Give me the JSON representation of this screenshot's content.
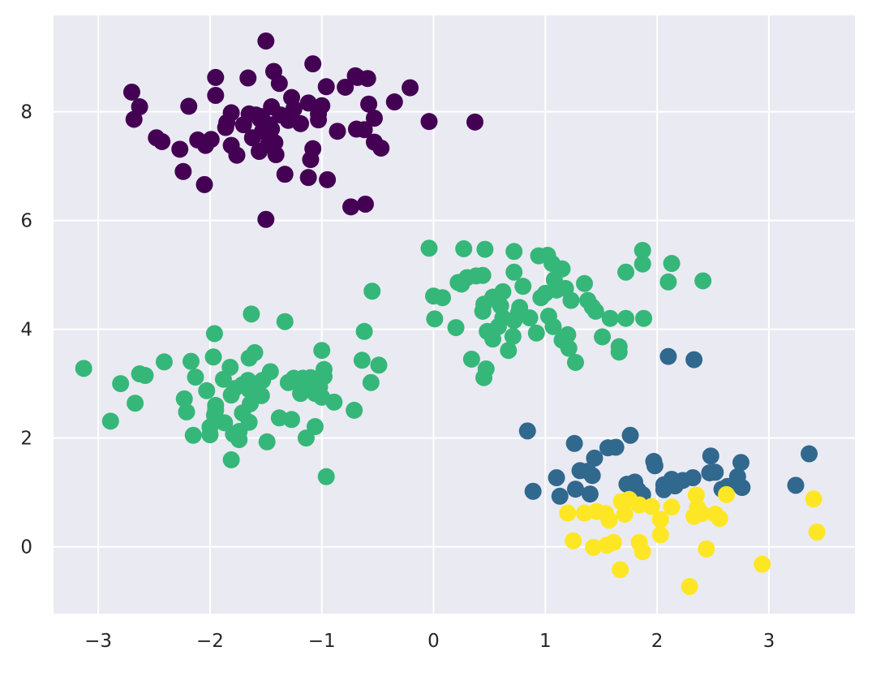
{
  "chart_data": {
    "type": "scatter",
    "title": "",
    "xlabel": "",
    "ylabel": "",
    "xlim": [
      -3.4,
      3.77
    ],
    "ylim": [
      -1.23,
      9.77
    ],
    "grid": true,
    "legend": "none",
    "xticks": [
      {
        "value": -3,
        "label": "−3"
      },
      {
        "value": -2,
        "label": "−2"
      },
      {
        "value": -1,
        "label": "−1"
      },
      {
        "value": 0,
        "label": "0"
      },
      {
        "value": 1,
        "label": "1"
      },
      {
        "value": 2,
        "label": "2"
      },
      {
        "value": 3,
        "label": "3"
      }
    ],
    "yticks": [
      {
        "value": 0,
        "label": "0"
      },
      {
        "value": 2,
        "label": "2"
      },
      {
        "value": 4,
        "label": "4"
      },
      {
        "value": 6,
        "label": "6"
      },
      {
        "value": 8,
        "label": "8"
      }
    ],
    "style": {
      "plot_background": "#eaeaf2",
      "grid_color": "#ffffff",
      "tick_label_color": "#262626"
    },
    "series": [
      {
        "color": "#440154",
        "points": [
          [
            -1.5,
            9.3
          ],
          [
            -1.08,
            8.88
          ],
          [
            -0.7,
            8.66
          ],
          [
            -0.68,
            8.63
          ],
          [
            -0.59,
            8.61
          ],
          [
            -1.95,
            8.63
          ],
          [
            -1.66,
            8.62
          ],
          [
            -1.43,
            8.74
          ],
          [
            -0.96,
            8.46
          ],
          [
            -0.79,
            8.45
          ],
          [
            -0.21,
            8.44
          ],
          [
            -1.38,
            8.52
          ],
          [
            -2.7,
            8.36
          ],
          [
            -1.95,
            8.3
          ],
          [
            -1.27,
            8.26
          ],
          [
            -1.12,
            8.16
          ],
          [
            -2.63,
            8.09
          ],
          [
            -2.19,
            8.1
          ],
          [
            -1.45,
            8.09
          ],
          [
            -1.25,
            8.05
          ],
          [
            -1.0,
            8.11
          ],
          [
            -0.58,
            8.14
          ],
          [
            -0.35,
            8.18
          ],
          [
            -1.81,
            7.98
          ],
          [
            -1.65,
            7.96
          ],
          [
            -1.59,
            7.94
          ],
          [
            -1.54,
            7.91
          ],
          [
            -1.37,
            7.94
          ],
          [
            -1.03,
            7.96
          ],
          [
            -0.53,
            7.88
          ],
          [
            -2.68,
            7.86
          ],
          [
            -1.85,
            7.8
          ],
          [
            -1.55,
            7.86
          ],
          [
            -1.47,
            7.76
          ],
          [
            -1.3,
            7.84
          ],
          [
            -1.19,
            7.78
          ],
          [
            -1.03,
            7.85
          ],
          [
            -1.86,
            7.71
          ],
          [
            -1.7,
            7.76
          ],
          [
            -1.53,
            7.64
          ],
          [
            -1.45,
            7.68
          ],
          [
            -0.86,
            7.64
          ],
          [
            -0.69,
            7.68
          ],
          [
            -0.62,
            7.67
          ],
          [
            -0.04,
            7.82
          ],
          [
            0.37,
            7.81
          ],
          [
            -2.48,
            7.52
          ],
          [
            -2.43,
            7.45
          ],
          [
            -2.11,
            7.48
          ],
          [
            -1.99,
            7.49
          ],
          [
            -2.04,
            7.38
          ],
          [
            -1.81,
            7.38
          ],
          [
            -1.62,
            7.52
          ],
          [
            -1.48,
            7.39
          ],
          [
            -1.42,
            7.43
          ],
          [
            -0.53,
            7.44
          ],
          [
            -0.47,
            7.33
          ],
          [
            -2.27,
            7.31
          ],
          [
            -1.56,
            7.27
          ],
          [
            -1.41,
            7.21
          ],
          [
            -1.08,
            7.32
          ],
          [
            -1.76,
            7.2
          ],
          [
            -1.1,
            7.12
          ],
          [
            -2.24,
            6.9
          ],
          [
            -1.33,
            6.85
          ],
          [
            -1.12,
            6.79
          ],
          [
            -0.95,
            6.75
          ],
          [
            -2.05,
            6.66
          ],
          [
            -0.74,
            6.25
          ],
          [
            -0.61,
            6.3
          ],
          [
            -1.5,
            6.02
          ]
        ]
      },
      {
        "color": "#31688e",
        "points": [
          [
            2.1,
            3.5
          ],
          [
            2.33,
            3.44
          ],
          [
            1.76,
            2.05
          ],
          [
            1.26,
            1.9
          ],
          [
            0.84,
            2.13
          ],
          [
            1.56,
            1.82
          ],
          [
            1.63,
            1.83
          ],
          [
            3.36,
            1.71
          ],
          [
            2.48,
            1.67
          ],
          [
            1.44,
            1.63
          ],
          [
            1.97,
            1.57
          ],
          [
            2.75,
            1.55
          ],
          [
            1.98,
            1.49
          ],
          [
            1.31,
            1.4
          ],
          [
            1.38,
            1.39
          ],
          [
            2.47,
            1.36
          ],
          [
            1.42,
            1.31
          ],
          [
            2.52,
            1.37
          ],
          [
            2.72,
            1.29
          ],
          [
            1.1,
            1.27
          ],
          [
            2.13,
            1.24
          ],
          [
            2.32,
            1.27
          ],
          [
            2.23,
            1.22
          ],
          [
            1.8,
            1.19
          ],
          [
            1.73,
            1.15
          ],
          [
            2.06,
            1.14
          ],
          [
            2.16,
            1.12
          ],
          [
            2.63,
            1.11
          ],
          [
            3.24,
            1.13
          ],
          [
            2.76,
            1.09
          ],
          [
            1.27,
            1.06
          ],
          [
            1.83,
            1.04
          ],
          [
            2.58,
            1.06
          ],
          [
            2.06,
            1.05
          ],
          [
            1.4,
            0.97
          ],
          [
            1.87,
            0.96
          ],
          [
            1.13,
            0.93
          ],
          [
            0.89,
            1.02
          ]
        ]
      },
      {
        "color": "#35b779",
        "points": [
          [
            -0.04,
            5.49
          ],
          [
            0.27,
            5.48
          ],
          [
            0.46,
            5.47
          ],
          [
            0.72,
            5.43
          ],
          [
            0.94,
            5.35
          ],
          [
            1.02,
            5.36
          ],
          [
            1.87,
            5.45
          ],
          [
            1.06,
            5.21
          ],
          [
            1.87,
            5.2
          ],
          [
            2.13,
            5.21
          ],
          [
            1.15,
            5.11
          ],
          [
            0.3,
            4.95
          ],
          [
            0.38,
            4.98
          ],
          [
            0.44,
            4.99
          ],
          [
            0.72,
            5.05
          ],
          [
            1.72,
            5.05
          ],
          [
            1.08,
            4.91
          ],
          [
            0.22,
            4.86
          ],
          [
            0.25,
            4.83
          ],
          [
            2.1,
            4.87
          ],
          [
            2.41,
            4.89
          ],
          [
            1.35,
            4.84
          ],
          [
            0.8,
            4.79
          ],
          [
            1.18,
            4.75
          ],
          [
            0.62,
            4.69
          ],
          [
            1.0,
            4.66
          ],
          [
            1.1,
            4.72
          ],
          [
            0.0,
            4.61
          ],
          [
            0.08,
            4.58
          ],
          [
            0.53,
            4.59
          ],
          [
            0.96,
            4.58
          ],
          [
            1.23,
            4.53
          ],
          [
            1.38,
            4.53
          ],
          [
            0.45,
            4.46
          ],
          [
            0.6,
            4.43
          ],
          [
            0.77,
            4.4
          ],
          [
            1.42,
            4.41
          ],
          [
            1.03,
            4.24
          ],
          [
            0.44,
            4.33
          ],
          [
            0.76,
            4.3
          ],
          [
            1.45,
            4.33
          ],
          [
            0.62,
            4.21
          ],
          [
            0.86,
            4.21
          ],
          [
            1.58,
            4.2
          ],
          [
            1.72,
            4.2
          ],
          [
            1.88,
            4.2
          ],
          [
            0.01,
            4.19
          ],
          [
            0.72,
            4.16
          ],
          [
            0.58,
            4.05
          ],
          [
            1.07,
            4.05
          ],
          [
            0.2,
            4.03
          ],
          [
            0.48,
            3.96
          ],
          [
            0.92,
            3.93
          ],
          [
            1.2,
            3.9
          ],
          [
            1.15,
            3.8
          ],
          [
            0.53,
            3.82
          ],
          [
            0.71,
            3.87
          ],
          [
            1.51,
            3.86
          ],
          [
            1.66,
            3.68
          ],
          [
            1.21,
            3.65
          ],
          [
            1.66,
            3.58
          ],
          [
            0.67,
            3.61
          ],
          [
            0.34,
            3.45
          ],
          [
            1.27,
            3.39
          ],
          [
            0.47,
            3.27
          ],
          [
            0.45,
            3.11
          ],
          [
            -0.55,
            4.7
          ],
          [
            -0.62,
            3.96
          ],
          [
            -1.33,
            4.14
          ],
          [
            -1.63,
            4.28
          ],
          [
            -1.96,
            3.92
          ],
          [
            -1.0,
            3.61
          ],
          [
            -1.6,
            3.57
          ],
          [
            -1.65,
            3.47
          ],
          [
            -1.97,
            3.49
          ],
          [
            -2.41,
            3.4
          ],
          [
            -2.17,
            3.41
          ],
          [
            -0.64,
            3.43
          ],
          [
            -0.49,
            3.34
          ],
          [
            -1.82,
            3.3
          ],
          [
            -3.13,
            3.28
          ],
          [
            -1.46,
            3.22
          ],
          [
            -0.98,
            3.26
          ],
          [
            -2.63,
            3.18
          ],
          [
            -2.58,
            3.15
          ],
          [
            -2.13,
            3.12
          ],
          [
            -1.25,
            3.1
          ],
          [
            -1.17,
            3.1
          ],
          [
            -1.1,
            3.11
          ],
          [
            -0.98,
            3.13
          ],
          [
            -1.66,
            3.06
          ],
          [
            -1.53,
            3.06
          ],
          [
            -1.3,
            3.02
          ],
          [
            -0.56,
            3.02
          ],
          [
            -2.8,
            3.0
          ],
          [
            -1.88,
            3.08
          ],
          [
            -1.58,
            3.0
          ],
          [
            -1.71,
            2.98
          ],
          [
            -1.78,
            2.91
          ],
          [
            -1.65,
            2.89
          ],
          [
            -1.1,
            2.9
          ],
          [
            -1.02,
            2.94
          ],
          [
            -2.03,
            2.87
          ],
          [
            -1.19,
            2.82
          ],
          [
            -1.06,
            2.82
          ],
          [
            -1.81,
            2.79
          ],
          [
            -1.54,
            2.78
          ],
          [
            -1.0,
            2.75
          ],
          [
            -2.23,
            2.72
          ],
          [
            -0.89,
            2.66
          ],
          [
            -2.67,
            2.64
          ],
          [
            -1.64,
            2.63
          ],
          [
            -1.95,
            2.6
          ],
          [
            -1.95,
            2.51
          ],
          [
            -0.71,
            2.51
          ],
          [
            -2.21,
            2.48
          ],
          [
            -1.71,
            2.46
          ],
          [
            -1.96,
            2.42
          ],
          [
            -1.38,
            2.37
          ],
          [
            -2.89,
            2.31
          ],
          [
            -1.27,
            2.34
          ],
          [
            -1.87,
            2.28
          ],
          [
            -1.65,
            2.29
          ],
          [
            -2.0,
            2.2
          ],
          [
            -1.06,
            2.21
          ],
          [
            -1.74,
            2.12
          ],
          [
            -2.15,
            2.05
          ],
          [
            -2.0,
            2.06
          ],
          [
            -1.79,
            2.07
          ],
          [
            -1.14,
            2.0
          ],
          [
            -1.74,
            1.97
          ],
          [
            -1.49,
            1.93
          ],
          [
            -1.81,
            1.6
          ],
          [
            -0.96,
            1.29
          ]
        ]
      },
      {
        "color": "#fde725",
        "points": [
          [
            1.75,
            0.87
          ],
          [
            1.68,
            0.83
          ],
          [
            2.35,
            0.95
          ],
          [
            2.62,
            0.96
          ],
          [
            3.4,
            0.88
          ],
          [
            1.84,
            0.77
          ],
          [
            1.95,
            0.74
          ],
          [
            2.13,
            0.73
          ],
          [
            2.36,
            0.72
          ],
          [
            1.2,
            0.62
          ],
          [
            1.35,
            0.62
          ],
          [
            1.46,
            0.65
          ],
          [
            1.54,
            0.61
          ],
          [
            1.71,
            0.6
          ],
          [
            2.4,
            0.61
          ],
          [
            2.52,
            0.6
          ],
          [
            2.33,
            0.56
          ],
          [
            2.56,
            0.52
          ],
          [
            1.57,
            0.49
          ],
          [
            2.03,
            0.5
          ],
          [
            3.43,
            0.27
          ],
          [
            2.03,
            0.22
          ],
          [
            1.25,
            0.11
          ],
          [
            1.61,
            0.08
          ],
          [
            1.55,
            0.03
          ],
          [
            1.84,
            0.08
          ],
          [
            1.43,
            -0.01
          ],
          [
            2.44,
            -0.04
          ],
          [
            1.87,
            -0.09
          ],
          [
            2.94,
            -0.32
          ],
          [
            1.67,
            -0.42
          ],
          [
            2.29,
            -0.73
          ]
        ]
      }
    ]
  }
}
